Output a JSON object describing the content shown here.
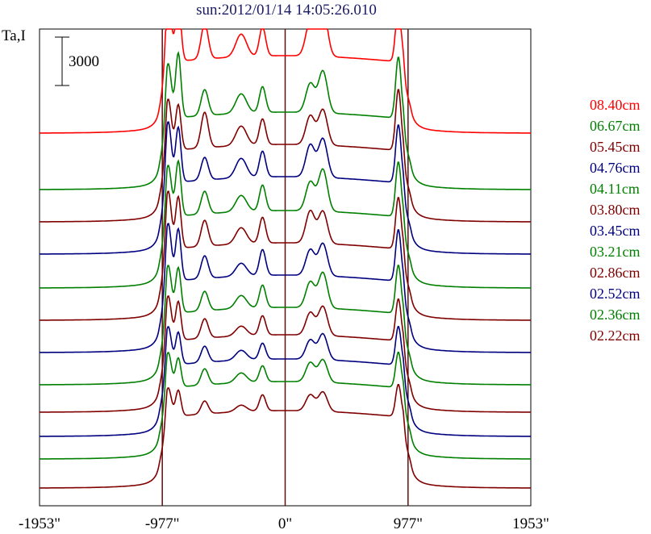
{
  "chart_data": {
    "type": "line",
    "title": "sun:2012/01/14 14:05:26.010",
    "ylabel": "Ta,I",
    "scale_bar_label": "3000",
    "scale_bar_value": 3000,
    "xlim": [
      -1953,
      1953
    ],
    "x_ticks": [
      {
        "value": -1953,
        "label": "-1953\""
      },
      {
        "value": -977,
        "label": "-977\""
      },
      {
        "value": 0,
        "label": "0\""
      },
      {
        "value": 977,
        "label": "977\""
      },
      {
        "value": 1953,
        "label": "1953\""
      }
    ],
    "vertical_lines": [
      -977,
      0,
      977
    ],
    "line_color": "#5a1010",
    "series": [
      {
        "name": "08.40cm",
        "color": "#ff0000",
        "offset": 22,
        "peaks": [
          1.0,
          0.95,
          0.55,
          0.35,
          0.45,
          0.55,
          0.75,
          0.9
        ]
      },
      {
        "name": "06.67cm",
        "color": "#008000",
        "offset": 18.5,
        "peaks": [
          0.85,
          1.0,
          0.4,
          0.3,
          0.4,
          0.45,
          0.65,
          0.95
        ]
      },
      {
        "name": "05.45cm",
        "color": "#800000",
        "offset": 16.5,
        "peaks": [
          0.8,
          0.7,
          0.55,
          0.3,
          0.4,
          0.45,
          0.55,
          0.95
        ]
      },
      {
        "name": "04.76cm",
        "color": "#000080",
        "offset": 14.5,
        "peaks": [
          0.95,
          0.85,
          0.35,
          0.3,
          0.4,
          0.5,
          0.6,
          0.9
        ]
      },
      {
        "name": "04.11cm",
        "color": "#008000",
        "offset": 12.4,
        "peaks": [
          0.8,
          0.85,
          0.35,
          0.25,
          0.4,
          0.45,
          0.65,
          0.85
        ]
      },
      {
        "name": "03.80cm",
        "color": "#800000",
        "offset": 10.4,
        "peaks": [
          0.9,
          0.8,
          0.4,
          0.25,
          0.4,
          0.5,
          0.5,
          0.8
        ]
      },
      {
        "name": "03.45cm",
        "color": "#000080",
        "offset": 8.4,
        "peaks": [
          0.9,
          0.8,
          0.35,
          0.2,
          0.4,
          0.4,
          0.5,
          0.8
        ]
      },
      {
        "name": "03.21cm",
        "color": "#008000",
        "offset": 6.4,
        "peaks": [
          0.75,
          0.7,
          0.3,
          0.2,
          0.35,
          0.4,
          0.55,
          0.75
        ]
      },
      {
        "name": "02.86cm",
        "color": "#800000",
        "offset": 4.7,
        "peaks": [
          0.7,
          0.6,
          0.3,
          0.15,
          0.3,
          0.35,
          0.45,
          0.65
        ]
      },
      {
        "name": "02.52cm",
        "color": "#000080",
        "offset": 3.2,
        "peaks": [
          0.6,
          0.5,
          0.25,
          0.15,
          0.25,
          0.3,
          0.4,
          0.6
        ]
      },
      {
        "name": "02.36cm",
        "color": "#008000",
        "offset": 1.8,
        "peaks": [
          0.55,
          0.45,
          0.25,
          0.15,
          0.25,
          0.3,
          0.35,
          0.55
        ]
      },
      {
        "name": "02.22cm",
        "color": "#800000",
        "offset": 0,
        "peaks": [
          0.45,
          0.4,
          0.2,
          0.1,
          0.25,
          0.25,
          0.3,
          0.5
        ]
      }
    ]
  }
}
